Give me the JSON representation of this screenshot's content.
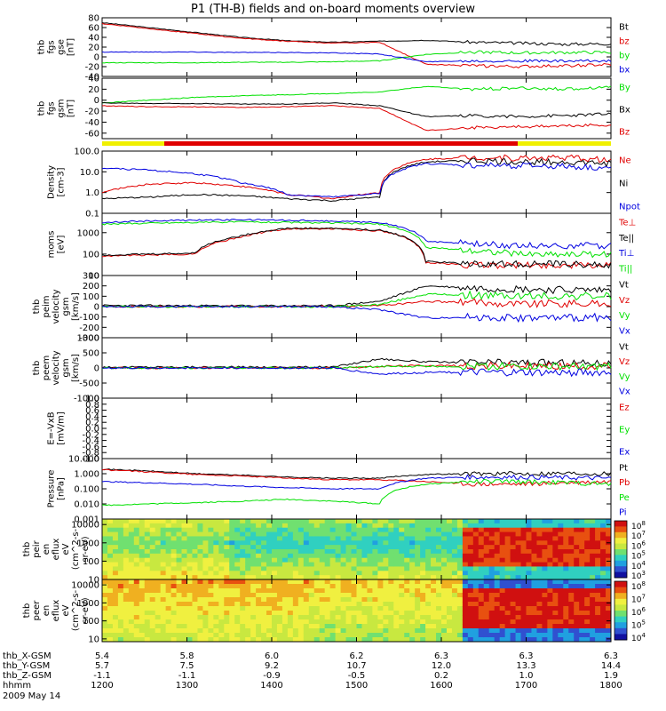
{
  "title": "P1 (TH-B) fields and on-board moments overview",
  "colors": {
    "black": "#000000",
    "red": "#e00000",
    "green": "#00e000",
    "blue": "#0000e0",
    "yellow": "#f0f000"
  },
  "time_axis": {
    "hhmm": [
      "1200",
      "1300",
      "1400",
      "1500",
      "1600",
      "1700",
      "1800"
    ],
    "rows": [
      {
        "label": "thb_X-GSM",
        "values": [
          "5.4",
          "5.8",
          "6.0",
          "6.2",
          "6.3",
          "6.3",
          "6.3"
        ]
      },
      {
        "label": "thb_Y-GSM",
        "values": [
          "5.7",
          "7.5",
          "9.2",
          "10.7",
          "12.0",
          "13.3",
          "14.4"
        ]
      },
      {
        "label": "thb_Z-GSM",
        "values": [
          "-1.1",
          "-1.1",
          "-0.9",
          "-0.5",
          "0.2",
          "1.0",
          "1.9"
        ]
      },
      {
        "label": "hhmm",
        "values": [
          "1200",
          "1300",
          "1400",
          "1500",
          "1600",
          "1700",
          "1800"
        ]
      }
    ],
    "date": "2009 May 14"
  },
  "chart_data": [
    {
      "type": "line",
      "ylabel": [
        "thb",
        "fgs",
        "gse",
        "[nT]"
      ],
      "ylim": [
        -40,
        80
      ],
      "ticks": [
        "80",
        "60",
        "40",
        "20",
        "0",
        "-20",
        "-40"
      ],
      "series": [
        {
          "name": "Bt",
          "color": "#000000",
          "values": [
            70,
            60,
            50,
            40,
            33,
            30,
            32,
            34,
            30,
            28,
            26,
            27
          ]
        },
        {
          "name": "bz",
          "color": "#e00000",
          "values": [
            68,
            58,
            48,
            38,
            32,
            28,
            30,
            -15,
            -18,
            -20,
            -18,
            -16
          ]
        },
        {
          "name": "by",
          "color": "#00e000",
          "values": [
            -12,
            -12,
            -12,
            -11,
            -11,
            -10,
            -8,
            5,
            10,
            8,
            9,
            9
          ]
        },
        {
          "name": "bx",
          "color": "#0000e0",
          "values": [
            10,
            10,
            10,
            9,
            9,
            8,
            6,
            -10,
            -8,
            -8,
            -9,
            -8
          ]
        }
      ]
    },
    {
      "type": "line",
      "ylabel": [
        "thb",
        "fgs",
        "gsm",
        "[nT]"
      ],
      "ylim": [
        -70,
        40
      ],
      "ticks": [
        "40",
        "20",
        "0",
        "-20",
        "-40",
        "-60"
      ],
      "series": [
        {
          "name": "By",
          "color": "#00e000",
          "values": [
            -5,
            0,
            5,
            8,
            10,
            12,
            15,
            25,
            20,
            22,
            20,
            25
          ]
        },
        {
          "name": "Bx",
          "color": "#000000",
          "values": [
            -5,
            -6,
            -6,
            -7,
            -7,
            -5,
            -10,
            -30,
            -28,
            -30,
            -28,
            -25
          ]
        },
        {
          "name": "Bz",
          "color": "#e00000",
          "values": [
            -10,
            -12,
            -12,
            -13,
            -12,
            -10,
            -15,
            -55,
            -50,
            -48,
            -47,
            -45
          ]
        }
      ]
    },
    {
      "type": "line",
      "ylabel": [
        "Density",
        "[cm-3]"
      ],
      "yscale": "log",
      "ylim": [
        0.1,
        100
      ],
      "ticks": [
        "100.0",
        "10.0",
        "1.0",
        "0.1"
      ],
      "series": [
        {
          "name": "Ne",
          "color": "#e00000",
          "values": [
            1.0,
            2.5,
            3.0,
            2.0,
            0.8,
            0.5,
            1.0,
            40,
            50,
            45,
            50,
            35
          ]
        },
        {
          "name": "Ni",
          "color": "#000000",
          "values": [
            0.5,
            0.6,
            0.8,
            0.7,
            0.5,
            0.4,
            0.6,
            30,
            35,
            30,
            30,
            25
          ]
        },
        {
          "name": "Npot",
          "color": "#0000e0",
          "values": [
            15,
            12,
            8,
            3,
            0.8,
            0.6,
            0.9,
            25,
            20,
            20,
            18,
            15
          ]
        }
      ]
    },
    {
      "type": "line",
      "ylabel": [
        "moms",
        "[eV]"
      ],
      "yscale": "log",
      "ylim": [
        10,
        8000
      ],
      "ticks": [
        "1000",
        "100",
        "10"
      ],
      "series": [
        {
          "name": "Te⊥",
          "color": "#e00000",
          "values": [
            80,
            90,
            100,
            600,
            1500,
            1500,
            1200,
            40,
            30,
            30,
            30,
            30
          ]
        },
        {
          "name": "Te||",
          "color": "#000000",
          "values": [
            90,
            100,
            110,
            700,
            1600,
            1600,
            1300,
            45,
            35,
            35,
            35,
            30
          ]
        },
        {
          "name": "Ti⊥",
          "color": "#0000e0",
          "values": [
            3000,
            3500,
            3800,
            4000,
            3800,
            3500,
            3000,
            400,
            300,
            250,
            250,
            250
          ]
        },
        {
          "name": "Ti||",
          "color": "#00e000",
          "values": [
            2500,
            2800,
            3000,
            3200,
            3000,
            2800,
            2500,
            200,
            150,
            100,
            100,
            100
          ]
        }
      ]
    },
    {
      "type": "line",
      "ylabel": [
        "thb",
        "peim",
        "velocity",
        "gsm",
        "[km/s]"
      ],
      "ylim": [
        -300,
        300
      ],
      "ticks": [
        "300",
        "200",
        "100",
        "0",
        "-100",
        "-200",
        "-300"
      ],
      "series": [
        {
          "name": "Vt",
          "color": "#000000",
          "values": [
            10,
            10,
            8,
            8,
            8,
            10,
            50,
            200,
            180,
            170,
            160,
            160
          ]
        },
        {
          "name": "Vz",
          "color": "#e00000",
          "values": [
            0,
            0,
            0,
            0,
            0,
            0,
            10,
            50,
            40,
            30,
            30,
            30
          ]
        },
        {
          "name": "Vy",
          "color": "#00e000",
          "values": [
            0,
            0,
            0,
            0,
            0,
            0,
            20,
            120,
            110,
            100,
            100,
            100
          ]
        },
        {
          "name": "Vx",
          "color": "#0000e0",
          "values": [
            0,
            0,
            0,
            0,
            0,
            0,
            -30,
            -110,
            -100,
            -110,
            -110,
            -100
          ]
        }
      ]
    },
    {
      "type": "line",
      "ylabel": [
        "thb",
        "peem",
        "velocity",
        "gsm",
        "[km/s]"
      ],
      "ylim": [
        -1000,
        1000
      ],
      "ticks": [
        "1000",
        "500",
        "0",
        "-500",
        "-1000"
      ],
      "series": [
        {
          "name": "Vt",
          "color": "#000000",
          "values": [
            30,
            30,
            30,
            30,
            30,
            30,
            300,
            200,
            180,
            180,
            170,
            160
          ]
        },
        {
          "name": "Vz",
          "color": "#e00000",
          "values": [
            0,
            0,
            0,
            0,
            0,
            0,
            50,
            80,
            70,
            60,
            60,
            60
          ]
        },
        {
          "name": "Vy",
          "color": "#00e000",
          "values": [
            0,
            0,
            0,
            0,
            0,
            0,
            40,
            60,
            50,
            60,
            50,
            50
          ]
        },
        {
          "name": "Vx",
          "color": "#0000e0",
          "values": [
            0,
            0,
            0,
            0,
            0,
            0,
            -200,
            -150,
            -140,
            -150,
            -150,
            -150
          ]
        }
      ]
    },
    {
      "type": "line",
      "ylabel": [
        "E=-VxB",
        "[mV/m]"
      ],
      "ylim": [
        -1,
        1
      ],
      "ticks": [
        "1.0",
        "0.8",
        "0.6",
        "0.4",
        "0.2",
        "0.0",
        "-0.2",
        "-0.4",
        "-0.6",
        "-0.8",
        "-1.0"
      ],
      "series": [
        {
          "name": "Ez",
          "color": "#e00000",
          "values": []
        },
        {
          "name": "Ey",
          "color": "#00e000",
          "values": []
        },
        {
          "name": "Ex",
          "color": "#0000e0",
          "values": []
        }
      ]
    },
    {
      "type": "line",
      "ylabel": [
        "Pressure",
        "[nPa]"
      ],
      "yscale": "log",
      "ylim": [
        0.001,
        10
      ],
      "ticks": [
        "10.000",
        "1.000",
        "0.100",
        "0.010",
        "0.001"
      ],
      "series": [
        {
          "name": "Pt",
          "color": "#000000",
          "values": [
            2.0,
            1.5,
            1.0,
            0.8,
            0.6,
            0.5,
            0.5,
            0.9,
            1.0,
            1.0,
            1.1,
            1.0
          ]
        },
        {
          "name": "Pb",
          "color": "#e00000",
          "values": [
            1.8,
            1.3,
            0.9,
            0.7,
            0.5,
            0.4,
            0.4,
            0.3,
            0.2,
            0.2,
            0.25,
            0.3
          ]
        },
        {
          "name": "Pe",
          "color": "#00e000",
          "values": [
            0.008,
            0.01,
            0.012,
            0.015,
            0.02,
            0.015,
            0.01,
            0.2,
            0.3,
            0.3,
            0.25,
            0.2
          ]
        },
        {
          "name": "Pi",
          "color": "#0000e0",
          "values": [
            0.3,
            0.25,
            0.2,
            0.15,
            0.12,
            0.1,
            0.1,
            0.5,
            0.6,
            0.6,
            0.55,
            0.5
          ]
        }
      ]
    },
    {
      "type": "heatmap",
      "ylabel": [
        "thb",
        "peir",
        "en",
        "eflux",
        "eV",
        "(cm^2-s-",
        "sr-eV)"
      ],
      "yscale": "log",
      "ylim": [
        10,
        20000
      ],
      "ticks": [
        "10000",
        "1000",
        "100",
        "10"
      ],
      "colorbar": [
        "10^8",
        "10^7",
        "10^6",
        "10^5",
        "10^4",
        "10^3"
      ]
    },
    {
      "type": "heatmap",
      "ylabel": [
        "thb",
        "peer",
        "en",
        "eflux",
        "eV",
        "(cm^2-s-",
        "sr-eV)"
      ],
      "yscale": "log",
      "ylim": [
        7,
        20000
      ],
      "ticks": [
        "10000",
        "1000",
        "100",
        "10"
      ],
      "colorbar": [
        "10^8",
        "10^7",
        "10^6",
        "10^5",
        "10^4"
      ]
    }
  ]
}
